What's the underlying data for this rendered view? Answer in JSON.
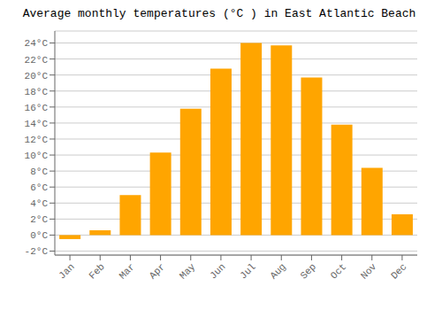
{
  "chart_data": {
    "type": "bar",
    "title": "Average monthly temperatures (°C ) in East Atlantic Beach",
    "categories": [
      "Jan",
      "Feb",
      "Mar",
      "Apr",
      "May",
      "Jun",
      "Jul",
      "Aug",
      "Sep",
      "Oct",
      "Nov",
      "Dec"
    ],
    "values": [
      -0.5,
      0.6,
      5.0,
      10.3,
      15.8,
      20.8,
      24.0,
      23.7,
      19.7,
      13.8,
      8.4,
      2.6
    ],
    "color": "#FFA500",
    "ylim": [
      -2.5,
      25.5
    ],
    "yticks": [
      {
        "value": -2,
        "label": "-2°C"
      },
      {
        "value": 0,
        "label": "0°C"
      },
      {
        "value": 2,
        "label": "2°C"
      },
      {
        "value": 4,
        "label": "4°C"
      },
      {
        "value": 6,
        "label": "6°C"
      },
      {
        "value": 8,
        "label": "8°C"
      },
      {
        "value": 10,
        "label": "10°C"
      },
      {
        "value": 12,
        "label": "12°C"
      },
      {
        "value": 14,
        "label": "14°C"
      },
      {
        "value": 16,
        "label": "16°C"
      },
      {
        "value": 18,
        "label": "18°C"
      },
      {
        "value": 20,
        "label": "20°C"
      },
      {
        "value": 22,
        "label": "22°C"
      },
      {
        "value": 24,
        "label": "24°C"
      }
    ],
    "grid": true
  }
}
